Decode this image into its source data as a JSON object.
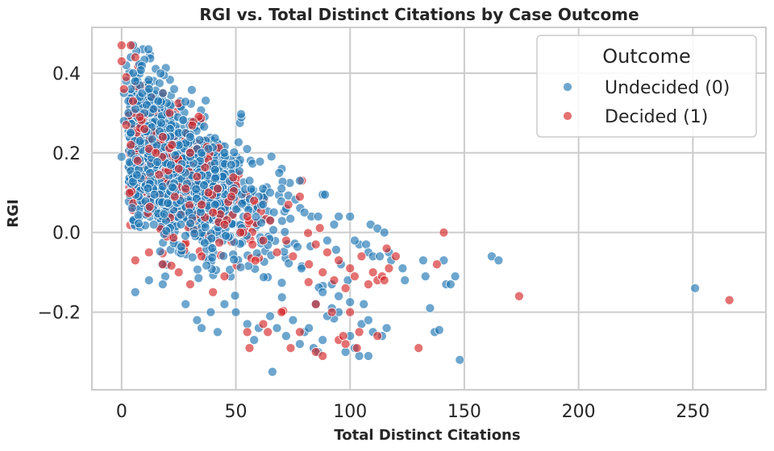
{
  "chart_data": {
    "type": "scatter",
    "title": "RGI vs. Total Distinct Citations by Case Outcome",
    "xlabel": "Total Distinct Citations",
    "ylabel": "RGI",
    "xlim": [
      -13,
      282
    ],
    "ylim": [
      -0.395,
      0.515
    ],
    "xticks": [
      0,
      50,
      100,
      150,
      200,
      250
    ],
    "xtick_labels": [
      "0",
      "50",
      "100",
      "150",
      "200",
      "250"
    ],
    "yticks": [
      -0.2,
      0.0,
      0.2,
      0.4
    ],
    "ytick_labels": [
      "−0.2",
      "0.0",
      "0.2",
      "0.4"
    ],
    "grid": true,
    "legend": {
      "title": "Outcome",
      "placement": "top-right"
    },
    "series": [
      {
        "name": "Undecided (0)",
        "color": "#1f77b4",
        "points": [
          [
            0,
            0.19
          ],
          [
            1,
            0.35
          ],
          [
            1,
            0.28
          ],
          [
            2,
            0.42
          ],
          [
            2,
            0.38
          ],
          [
            3,
            0.33
          ],
          [
            3,
            0.3
          ],
          [
            4,
            0.36
          ],
          [
            4,
            0.44
          ],
          [
            5,
            0.47
          ],
          [
            5,
            0.4
          ],
          [
            6,
            0.38
          ],
          [
            6,
            0.31
          ],
          [
            7,
            0.33
          ],
          [
            8,
            0.34
          ],
          [
            9,
            0.35
          ],
          [
            10,
            0.3
          ],
          [
            11,
            0.32
          ],
          [
            12,
            0.36
          ],
          [
            13,
            0.34
          ],
          [
            14,
            0.31
          ],
          [
            16,
            0.33
          ],
          [
            18,
            0.35
          ],
          [
            20,
            0.3
          ],
          [
            23,
            0.36
          ],
          [
            25,
            0.25
          ],
          [
            28,
            0.25
          ],
          [
            30,
            0.24
          ],
          [
            35,
            0.2
          ],
          [
            38,
            0.21
          ],
          [
            45,
            0.2
          ],
          [
            48,
            0.17
          ],
          [
            56,
            0.13
          ],
          [
            70,
            0.11
          ],
          [
            78,
            0.13
          ],
          [
            88,
            0.095
          ],
          [
            89,
            0.095
          ],
          [
            83,
            0.04
          ],
          [
            95,
            0.04
          ],
          [
            100,
            0.04
          ],
          [
            109,
            0.02
          ],
          [
            112,
            0.01
          ],
          [
            115,
            0.0
          ],
          [
            104,
            -0.03
          ],
          [
            107,
            -0.03
          ],
          [
            108,
            -0.05
          ],
          [
            110,
            -0.06
          ],
          [
            113,
            -0.06
          ],
          [
            117,
            -0.05
          ],
          [
            118,
            -0.07
          ],
          [
            123,
            -0.09
          ],
          [
            124,
            -0.12
          ],
          [
            132,
            -0.07
          ],
          [
            133,
            -0.11
          ],
          [
            141,
            -0.07
          ],
          [
            142,
            -0.13
          ],
          [
            144,
            -0.13
          ],
          [
            146,
            -0.11
          ],
          [
            135,
            -0.19
          ],
          [
            137,
            -0.25
          ],
          [
            139,
            -0.245
          ],
          [
            148,
            -0.32
          ],
          [
            162,
            -0.06
          ],
          [
            165,
            -0.07
          ],
          [
            251,
            -0.14
          ],
          [
            6,
            -0.15
          ],
          [
            12,
            -0.12
          ],
          [
            18,
            -0.13
          ],
          [
            28,
            -0.18
          ],
          [
            33,
            -0.22
          ],
          [
            35,
            -0.24
          ],
          [
            39,
            -0.2
          ],
          [
            42,
            -0.25
          ],
          [
            45,
            -0.18
          ],
          [
            50,
            -0.2
          ],
          [
            55,
            -0.23
          ],
          [
            58,
            -0.27
          ],
          [
            60,
            -0.24
          ],
          [
            65,
            -0.21
          ],
          [
            66,
            -0.35
          ],
          [
            68,
            -0.24
          ],
          [
            72,
            -0.26
          ],
          [
            75,
            -0.22
          ],
          [
            78,
            -0.28
          ],
          [
            80,
            -0.25
          ],
          [
            82,
            -0.24
          ],
          [
            84,
            -0.29
          ],
          [
            86,
            -0.3
          ],
          [
            88,
            -0.27
          ],
          [
            90,
            -0.21
          ],
          [
            92,
            -0.19
          ],
          [
            95,
            -0.2
          ],
          [
            98,
            -0.3
          ],
          [
            100,
            -0.26
          ],
          [
            102,
            -0.29
          ],
          [
            105,
            -0.23
          ],
          [
            106,
            -0.18
          ],
          [
            108,
            -0.22
          ],
          [
            110,
            -0.25
          ],
          [
            114,
            -0.26
          ],
          [
            116,
            -0.24
          ],
          [
            104,
            -0.31
          ],
          [
            108,
            -0.31
          ],
          [
            60,
            0.09
          ],
          [
            65,
            0.1
          ],
          [
            72,
            0.06
          ],
          [
            80,
            0.05
          ],
          [
            86,
            0.04
          ],
          [
            93,
            0.02
          ],
          [
            90,
            -0.02
          ],
          [
            102,
            -0.02
          ],
          [
            96,
            -0.08
          ],
          [
            99,
            -0.12
          ],
          [
            95,
            -0.16
          ],
          [
            88,
            -0.15
          ],
          [
            85,
            -0.18
          ],
          [
            92,
            -0.13
          ]
        ]
      },
      {
        "name": "Decided (1)",
        "color": "#d62728",
        "points": [
          [
            0,
            0.47
          ],
          [
            0,
            0.43
          ],
          [
            1,
            0.36
          ],
          [
            2,
            0.39
          ],
          [
            4,
            0.47
          ],
          [
            6,
            0.44
          ],
          [
            5,
            0.33
          ],
          [
            8,
            0.29
          ],
          [
            2,
            0.27
          ],
          [
            4,
            0.22
          ],
          [
            7,
            0.18
          ],
          [
            10,
            0.26
          ],
          [
            12,
            0.21
          ],
          [
            15,
            0.2
          ],
          [
            18,
            0.24
          ],
          [
            21,
            0.3
          ],
          [
            22,
            0.22
          ],
          [
            25,
            0.16
          ],
          [
            28,
            0.11
          ],
          [
            30,
            0.2
          ],
          [
            33,
            0.14
          ],
          [
            35,
            0.07
          ],
          [
            38,
            0.1
          ],
          [
            40,
            0.05
          ],
          [
            42,
            0.11
          ],
          [
            45,
            0.02
          ],
          [
            48,
            0.09
          ],
          [
            52,
            0.0
          ],
          [
            55,
            0.04
          ],
          [
            58,
            0.08
          ],
          [
            62,
            -0.02
          ],
          [
            65,
            0.03
          ],
          [
            68,
            -0.05
          ],
          [
            72,
            -0.02
          ],
          [
            73,
            0.07
          ],
          [
            75,
            -0.06
          ],
          [
            78,
            0.09
          ],
          [
            82,
            -0.08
          ],
          [
            85,
            -0.03
          ],
          [
            88,
            -0.1
          ],
          [
            90,
            -0.05
          ],
          [
            93,
            -0.12
          ],
          [
            95,
            -0.07
          ],
          [
            98,
            -0.14
          ],
          [
            100,
            -0.09
          ],
          [
            102,
            -0.11
          ],
          [
            105,
            -0.06
          ],
          [
            108,
            -0.13
          ],
          [
            110,
            -0.1
          ],
          [
            112,
            -0.12
          ],
          [
            114,
            -0.11
          ],
          [
            116,
            -0.04
          ],
          [
            120,
            -0.06
          ],
          [
            115,
            -0.12
          ],
          [
            117,
            -0.09
          ],
          [
            138,
            -0.08
          ],
          [
            141,
            0.0
          ],
          [
            6,
            -0.07
          ],
          [
            12,
            -0.05
          ],
          [
            18,
            -0.08
          ],
          [
            25,
            -0.1
          ],
          [
            30,
            -0.13
          ],
          [
            35,
            -0.06
          ],
          [
            40,
            -0.15
          ],
          [
            45,
            -0.11
          ],
          [
            55,
            -0.25
          ],
          [
            56,
            -0.29
          ],
          [
            62,
            -0.23
          ],
          [
            64,
            -0.25
          ],
          [
            70,
            -0.2
          ],
          [
            74,
            -0.29
          ],
          [
            78,
            -0.25
          ],
          [
            85,
            -0.3
          ],
          [
            88,
            -0.31
          ],
          [
            95,
            -0.27
          ],
          [
            97,
            -0.26
          ],
          [
            98,
            -0.28
          ],
          [
            103,
            -0.29
          ],
          [
            104,
            -0.25
          ],
          [
            112,
            -0.26
          ],
          [
            130,
            -0.29
          ],
          [
            174,
            -0.16
          ],
          [
            266,
            -0.17
          ],
          [
            92,
            -0.2
          ],
          [
            100,
            -0.2
          ],
          [
            85,
            -0.18
          ]
        ]
      }
    ]
  }
}
